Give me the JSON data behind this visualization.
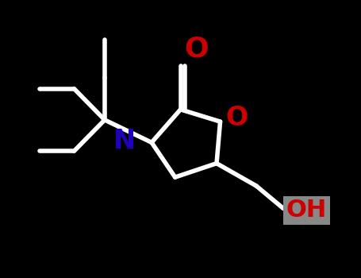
{
  "bg_color": "#000000",
  "bond_color": "#ffffff",
  "N_color": "#2200bb",
  "O_color": "#cc0000",
  "lw": 4.0,
  "font_size_O": 26,
  "font_size_N": 24,
  "font_size_OH": 22,
  "OH_bg": "#888888",
  "xlim": [
    0,
    10
  ],
  "ylim": [
    0,
    8
  ]
}
